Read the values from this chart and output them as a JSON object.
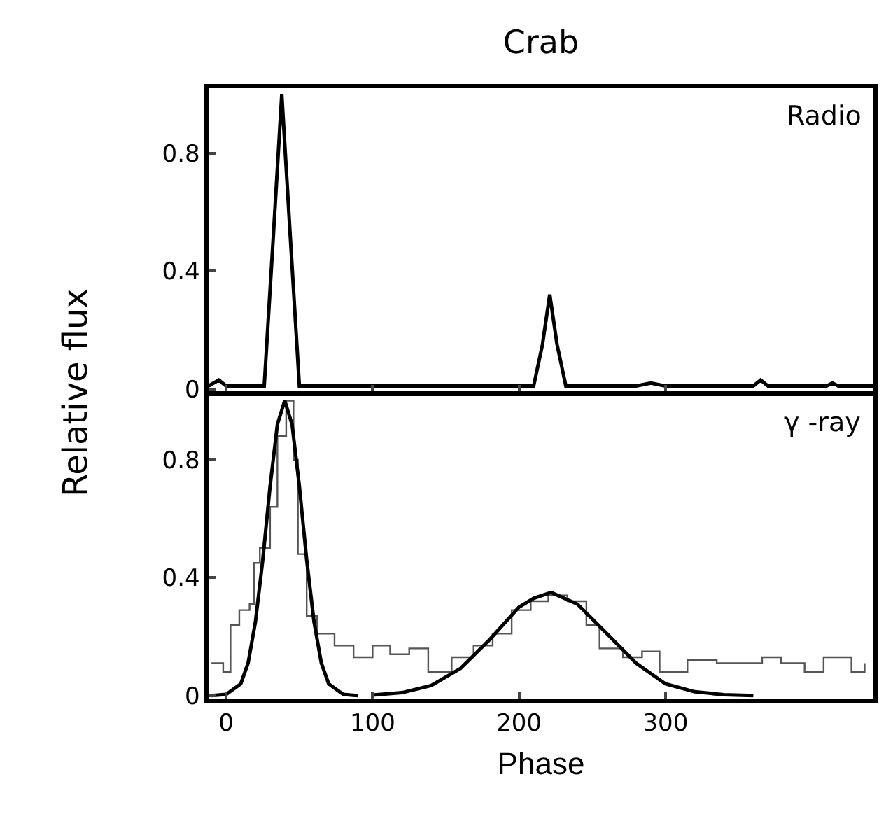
{
  "chart_data": [
    {
      "type": "line",
      "title": "Crab",
      "ylabel": "Relative flux",
      "annotations": [
        "Radio"
      ],
      "xlim": [
        -12,
        442
      ],
      "xticks": [
        0,
        100,
        200,
        300
      ],
      "ylim": [
        -0.01,
        1.02
      ],
      "yticks": [
        0,
        0.4,
        0.8
      ],
      "grid": false,
      "tick_labels": "y",
      "series": [
        {
          "color": "#000000",
          "x": [
            -12,
            -5,
            0,
            15,
            26,
            32,
            38,
            44,
            50,
            100,
            150,
            210,
            216,
            221,
            226,
            232,
            280,
            290,
            300,
            360,
            365,
            370,
            410,
            414,
            418,
            442
          ],
          "values": [
            0.01,
            0.03,
            0.01,
            0.01,
            0.01,
            0.5,
            1.0,
            0.5,
            0.01,
            0.01,
            0.01,
            0.01,
            0.15,
            0.32,
            0.15,
            0.01,
            0.01,
            0.02,
            0.01,
            0.01,
            0.03,
            0.01,
            0.01,
            0.02,
            0.01,
            0.01
          ]
        }
      ]
    },
    {
      "type": "line",
      "xlabel": "Phase",
      "annotations": [
        "γ -ray"
      ],
      "xlim": [
        -12,
        442
      ],
      "xticks": [
        0,
        100,
        200,
        300
      ],
      "ylim": [
        -0.01,
        1.02
      ],
      "yticks": [
        0,
        0.4,
        0.8
      ],
      "grid": false,
      "series": [
        {
          "type": "step",
          "color": "#555555",
          "x": [
            -10,
            -2,
            3,
            9,
            16,
            19,
            23,
            30,
            35,
            41,
            46,
            49,
            55,
            62,
            74,
            87,
            100,
            112,
            125,
            138,
            154,
            169,
            182,
            195,
            208,
            220,
            233,
            246,
            255,
            271,
            284,
            296,
            315,
            335,
            347,
            366,
            379,
            395,
            408,
            427,
            436
          ],
          "values": [
            0.11,
            0.08,
            0.24,
            0.29,
            0.31,
            0.45,
            0.5,
            0.64,
            0.88,
            1.0,
            0.8,
            0.48,
            0.27,
            0.21,
            0.17,
            0.13,
            0.17,
            0.14,
            0.16,
            0.08,
            0.13,
            0.17,
            0.21,
            0.29,
            0.32,
            0.34,
            0.32,
            0.24,
            0.16,
            0.13,
            0.15,
            0.08,
            0.12,
            0.11,
            0.11,
            0.13,
            0.11,
            0.08,
            0.13,
            0.08,
            0.11
          ]
        },
        {
          "color": "#000000",
          "x": [
            -10,
            0,
            10,
            15,
            20,
            25,
            30,
            35,
            40,
            45,
            50,
            55,
            60,
            65,
            70,
            80,
            90
          ],
          "values": [
            0.0,
            0.004,
            0.04,
            0.11,
            0.25,
            0.46,
            0.71,
            0.92,
            1.0,
            0.92,
            0.71,
            0.46,
            0.25,
            0.11,
            0.04,
            0.004,
            0.0
          ]
        },
        {
          "color": "#000000",
          "x": [
            100,
            120,
            140,
            160,
            180,
            200,
            210,
            222,
            240,
            260,
            280,
            300,
            320,
            340,
            360
          ],
          "values": [
            0.002,
            0.01,
            0.034,
            0.092,
            0.19,
            0.3,
            0.33,
            0.35,
            0.31,
            0.21,
            0.11,
            0.04,
            0.013,
            0.003,
            0.0
          ]
        }
      ]
    }
  ]
}
